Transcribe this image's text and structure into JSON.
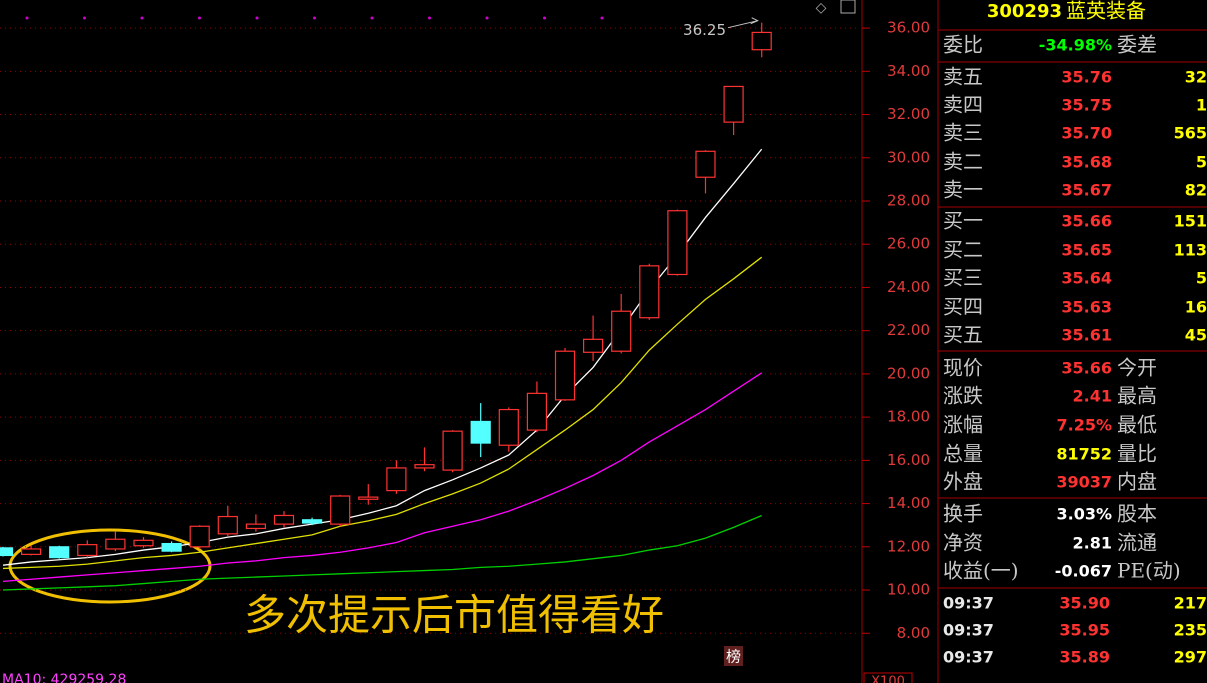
{
  "chart_data": {
    "type": "candlestick",
    "annotation": "36.25",
    "caption": "多次提示后市值得看好",
    "footer_label": "MA10: 429259.28",
    "badge": "榜",
    "scale_badge": "X100",
    "up_color": "#ff3232",
    "down_color": "#54ffff",
    "ylim": [
      6.3,
      37.3
    ],
    "yticks": [
      {
        "value": 8,
        "label": "8.00"
      },
      {
        "value": 10,
        "label": "10.00"
      },
      {
        "value": 12,
        "label": "12.00"
      },
      {
        "value": 14,
        "label": "14.00"
      },
      {
        "value": 16,
        "label": "16.00"
      },
      {
        "value": 18,
        "label": "18.00"
      },
      {
        "value": 20,
        "label": "20.00"
      },
      {
        "value": 22,
        "label": "22.00"
      },
      {
        "value": 24,
        "label": "24.00"
      },
      {
        "value": 26,
        "label": "26.00"
      },
      {
        "value": 28,
        "label": "28.00"
      },
      {
        "value": 30,
        "label": "30.00"
      },
      {
        "value": 32,
        "label": "32.00"
      },
      {
        "value": 34,
        "label": "34.00"
      },
      {
        "value": 36,
        "label": "36.00"
      }
    ],
    "grid": true,
    "open": [
      11.95,
      11.65,
      12.0,
      11.6,
      11.9,
      12.05,
      12.15,
      12.0,
      12.6,
      12.85,
      13.05,
      13.25,
      13.05,
      14.2,
      14.6,
      15.65,
      15.55,
      17.8,
      16.7,
      17.4,
      18.8,
      21.0,
      21.05,
      22.6,
      24.6,
      29.1,
      31.65,
      35.0
    ],
    "high": [
      12.0,
      12.05,
      12.05,
      12.3,
      12.7,
      12.45,
      12.25,
      13.0,
      13.9,
      13.5,
      13.65,
      13.35,
      14.4,
      14.9,
      16.0,
      16.6,
      17.4,
      18.65,
      18.45,
      19.65,
      21.2,
      22.7,
      23.7,
      25.1,
      27.6,
      30.35,
      33.3,
      36.25
    ],
    "low": [
      11.55,
      11.6,
      11.45,
      11.5,
      11.8,
      11.95,
      11.75,
      11.9,
      12.5,
      12.7,
      12.9,
      13.0,
      12.95,
      13.95,
      14.45,
      15.5,
      15.45,
      16.15,
      16.4,
      17.3,
      18.75,
      20.6,
      20.95,
      22.5,
      24.55,
      28.35,
      31.05,
      34.65
    ],
    "close": [
      11.6,
      11.9,
      11.5,
      12.1,
      12.35,
      12.3,
      11.8,
      12.95,
      13.4,
      13.05,
      13.45,
      13.1,
      14.35,
      14.3,
      15.65,
      15.8,
      17.35,
      16.8,
      18.35,
      19.1,
      21.05,
      21.6,
      22.9,
      25.0,
      27.55,
      30.3,
      33.3,
      35.8
    ],
    "series": [
      {
        "color": "#ffffff",
        "values": [
          11.15,
          11.3,
          11.4,
          11.5,
          11.65,
          11.85,
          12.0,
          12.2,
          12.45,
          12.6,
          12.85,
          13.05,
          13.25,
          13.55,
          13.9,
          14.6,
          15.1,
          15.65,
          16.25,
          17.4,
          19.0,
          20.3,
          22.05,
          23.9,
          25.5,
          27.24,
          28.8,
          30.4
        ]
      },
      {
        "color": "#e0e000",
        "values": [
          11.0,
          11.05,
          11.1,
          11.2,
          11.35,
          11.5,
          11.6,
          11.75,
          11.95,
          12.15,
          12.35,
          12.55,
          12.95,
          13.2,
          13.5,
          14.0,
          14.45,
          14.95,
          15.6,
          16.5,
          17.4,
          18.35,
          19.6,
          21.1,
          22.3,
          23.45,
          24.4,
          25.4
        ]
      },
      {
        "color": "#ff00ff",
        "values": [
          10.4,
          10.5,
          10.6,
          10.7,
          10.8,
          10.9,
          11.0,
          11.1,
          11.25,
          11.35,
          11.5,
          11.6,
          11.75,
          11.95,
          12.2,
          12.65,
          12.95,
          13.25,
          13.65,
          14.15,
          14.7,
          15.3,
          16.0,
          16.85,
          17.6,
          18.35,
          19.2,
          20.05
        ]
      },
      {
        "color": "#00d000",
        "values": [
          10.0,
          10.05,
          10.1,
          10.15,
          10.2,
          10.3,
          10.4,
          10.5,
          10.55,
          10.6,
          10.65,
          10.7,
          10.75,
          10.8,
          10.85,
          10.9,
          10.95,
          11.05,
          11.1,
          11.2,
          11.3,
          11.45,
          11.6,
          11.85,
          12.05,
          12.4,
          12.9,
          13.45
        ]
      }
    ]
  },
  "quote": {
    "code": "300293",
    "name": "蓝英装备",
    "rows": [
      {
        "label": "委比",
        "value": "-34.98%",
        "color": "#00ff00",
        "label2": "委差"
      },
      {
        "label": "卖五",
        "value": "35.76",
        "color": "#ff3232",
        "tail": "32"
      },
      {
        "label": "卖四",
        "value": "35.75",
        "color": "#ff3232",
        "tail": "1"
      },
      {
        "label": "卖三",
        "value": "35.70",
        "color": "#ff3232",
        "tail": "565"
      },
      {
        "label": "卖二",
        "value": "35.68",
        "color": "#ff3232",
        "tail": "5"
      },
      {
        "label": "卖一",
        "value": "35.67",
        "color": "#ff3232",
        "tail": "82"
      },
      {
        "label": "买一",
        "value": "35.66",
        "color": "#ff3232",
        "tail": "151"
      },
      {
        "label": "买二",
        "value": "35.65",
        "color": "#ff3232",
        "tail": "113"
      },
      {
        "label": "买三",
        "value": "35.64",
        "color": "#ff3232",
        "tail": "5"
      },
      {
        "label": "买四",
        "value": "35.63",
        "color": "#ff3232",
        "tail": "16"
      },
      {
        "label": "买五",
        "value": "35.61",
        "color": "#ff3232",
        "tail": "45"
      },
      {
        "label": "现价",
        "value": "35.66",
        "color": "#ff3232",
        "label2": "今开"
      },
      {
        "label": "涨跌",
        "value": "2.41",
        "color": "#ff3232",
        "label2": "最高"
      },
      {
        "label": "涨幅",
        "value": "7.25%",
        "color": "#ff3232",
        "label2": "最低"
      },
      {
        "label": "总量",
        "value": "81752",
        "color": "#ffff00",
        "label2": "量比"
      },
      {
        "label": "外盘",
        "value": "39037",
        "color": "#ff3232",
        "label2": "内盘"
      },
      {
        "label": "换手",
        "value": "3.03%",
        "color": "#ffffff",
        "label2": "股本"
      },
      {
        "label": "净资",
        "value": "2.81",
        "color": "#ffffff",
        "label2": "流通"
      },
      {
        "label": "收益(一)",
        "value": "-0.067",
        "color": "#ffffff",
        "label2": "PE(动)"
      }
    ],
    "trades": [
      [
        "09:37",
        "35.90",
        "217"
      ],
      [
        "09:37",
        "35.95",
        "235"
      ],
      [
        "09:37",
        "35.89",
        "297"
      ]
    ]
  }
}
